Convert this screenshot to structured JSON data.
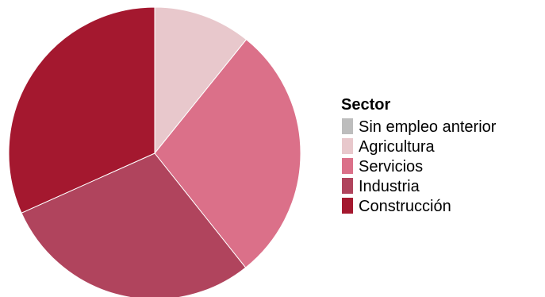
{
  "chart_data": {
    "type": "pie",
    "legend_title": "Sector",
    "legend_position": "right",
    "categories": [
      "Sin empleo anterior",
      "Agricultura",
      "Servicios",
      "Industria",
      "Construcción"
    ],
    "values": [
      0,
      10.8,
      28.5,
      29.0,
      31.7
    ],
    "colors": [
      "#bdbdbd",
      "#e8c8cc",
      "#db7089",
      "#b0445d",
      "#a4182f"
    ]
  }
}
